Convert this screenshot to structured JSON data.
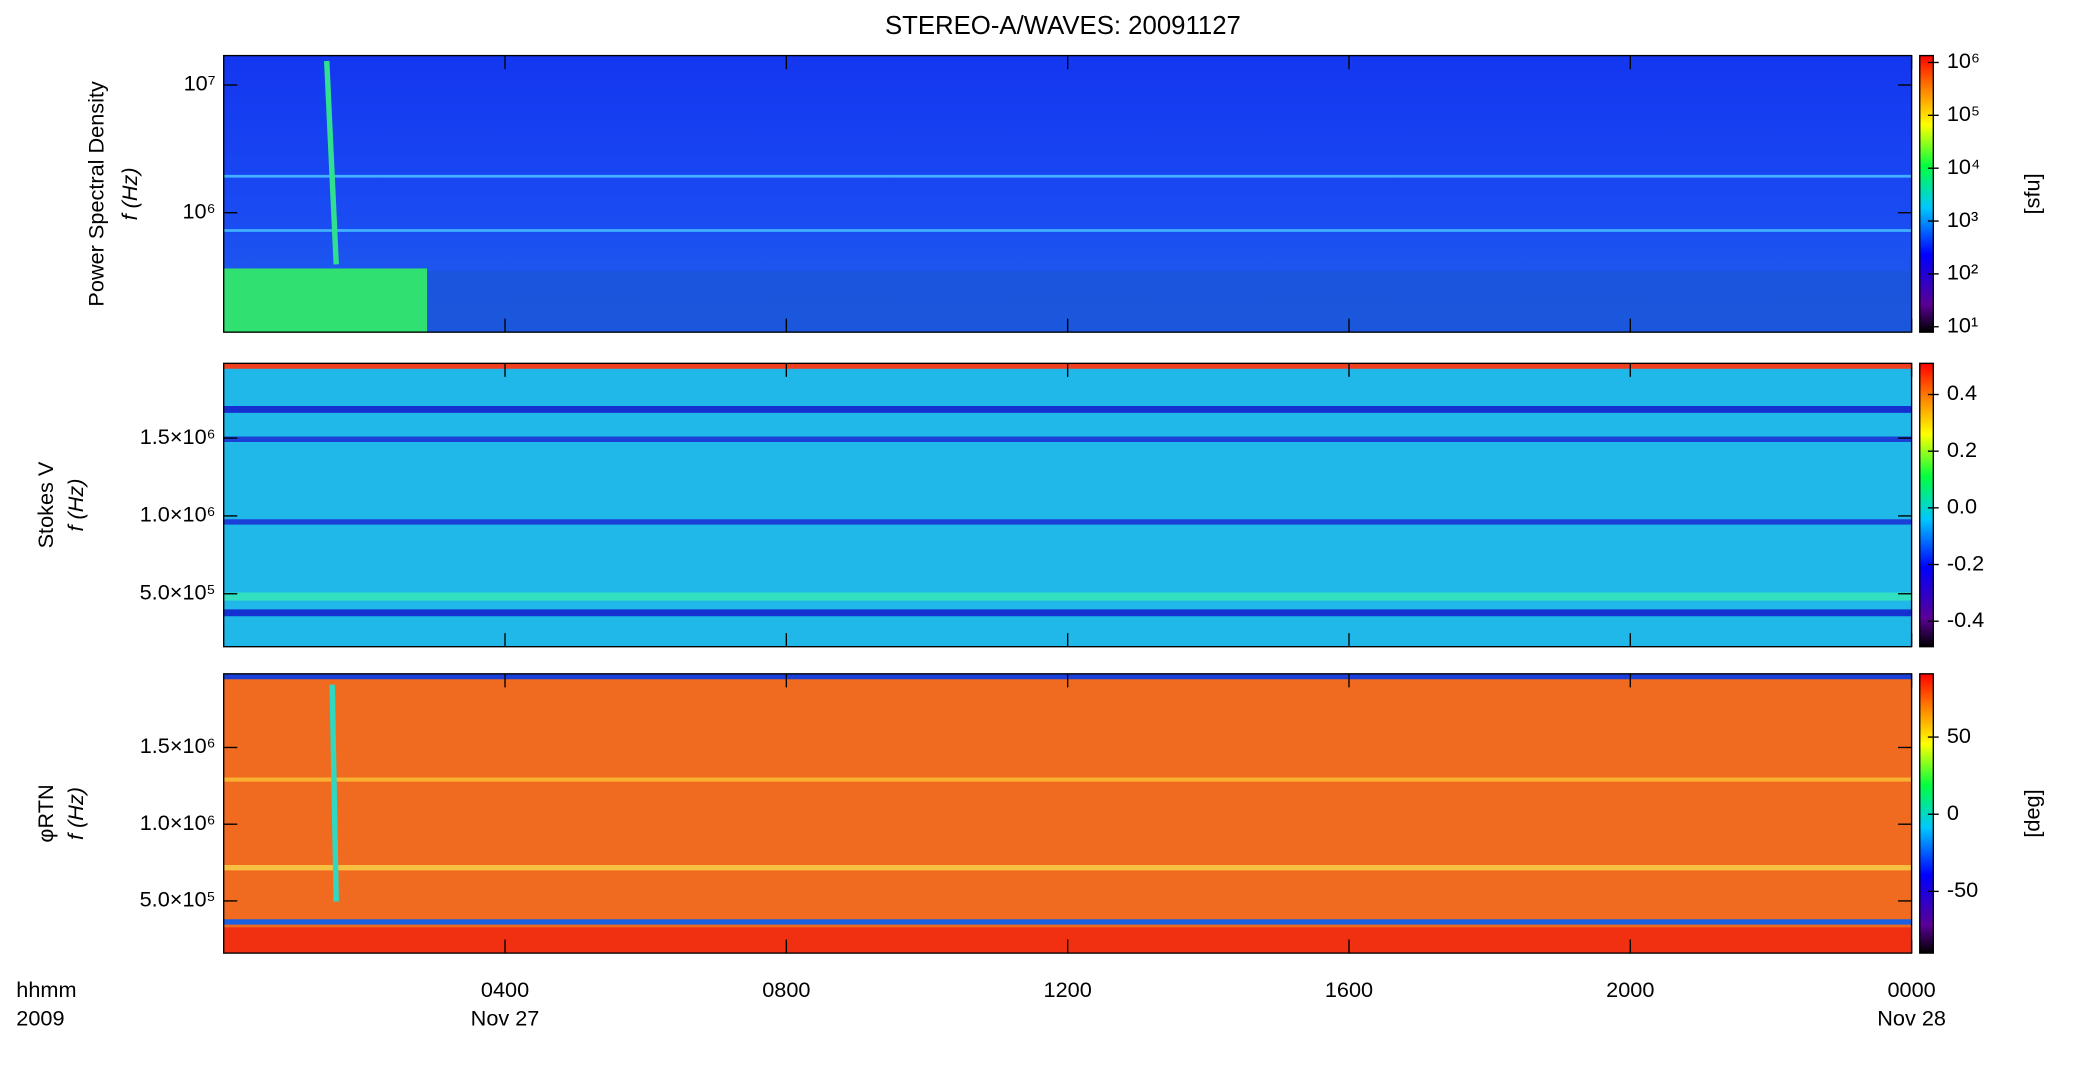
{
  "chart_data": [
    {
      "type": "spectrogram",
      "title": "STEREO-A/WAVES: 20091127",
      "ylabel": [
        "Power Spectral Density",
        "f (Hz)"
      ],
      "ylog": true,
      "ylim": [
        116000,
        17000000
      ],
      "yticks": [
        {
          "value": 1000000,
          "label": "10⁶"
        },
        {
          "value": 10000000,
          "label": "10⁷"
        }
      ],
      "xlim": [
        0,
        24
      ],
      "clog": true,
      "clim": [
        7.9,
        1350000
      ],
      "cticks": [
        {
          "value": 10,
          "label": "10¹"
        },
        {
          "value": 100,
          "label": "10²"
        },
        {
          "value": 1000,
          "label": "10³"
        },
        {
          "value": 10000,
          "label": "10⁴"
        },
        {
          "value": 100000,
          "label": "10⁵"
        },
        {
          "value": 1000000,
          "label": "10⁶"
        }
      ],
      "clabel": "[sfu]"
    },
    {
      "type": "spectrogram",
      "ylabel": [
        "Stokes V",
        "f (Hz)"
      ],
      "ylog": false,
      "ylim": [
        160000,
        1980000
      ],
      "yticks": [
        {
          "value": 500000,
          "label": "5.0×10⁵"
        },
        {
          "value": 1000000,
          "label": "1.0×10⁶"
        },
        {
          "value": 1500000,
          "label": "1.5×10⁶"
        }
      ],
      "xlim": [
        0,
        24
      ],
      "clog": false,
      "clim": [
        -0.49,
        0.51
      ],
      "cticks": [
        -0.4,
        -0.2,
        {
          "value": 0,
          "label": "0.0"
        },
        0.2,
        0.4
      ]
    },
    {
      "type": "spectrogram",
      "ylabel": [
        "φRTN",
        "f (Hz)"
      ],
      "ylog": false,
      "ylim": [
        160000,
        1980000
      ],
      "yticks": [
        {
          "value": 500000,
          "label": "5.0×10⁵"
        },
        {
          "value": 1000000,
          "label": "1.0×10⁶"
        },
        {
          "value": 1500000,
          "label": "1.5×10⁶"
        }
      ],
      "xlim": [
        0,
        24
      ],
      "xticks": [
        {
          "value": 4,
          "label": "0400"
        },
        {
          "value": 8,
          "label": "0800"
        },
        {
          "value": 12,
          "label": "1200"
        },
        {
          "value": 16,
          "label": "1600"
        },
        {
          "value": 20,
          "label": "2000"
        },
        {
          "value": 24,
          "label": "0000"
        }
      ],
      "xdates": [
        {
          "value": 4,
          "label": "Nov 27"
        },
        {
          "value": 24,
          "label": "Nov 28"
        }
      ],
      "xaxis_label": [
        "hhmm",
        "2009"
      ],
      "clog": false,
      "clim": [
        -90,
        91
      ],
      "cticks": [
        -50,
        0,
        50
      ],
      "clabel": "[deg]"
    }
  ]
}
